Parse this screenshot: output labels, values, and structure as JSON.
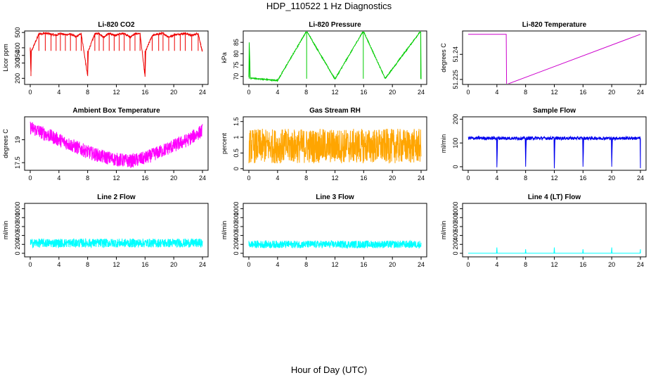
{
  "title": "HDP_110522  1 Hz Diagnostics",
  "xlabel": "Hour of Day (UTC)",
  "chart_data": [
    {
      "type": "line",
      "title": "Li-820 CO2",
      "ylabel": "Licor ppm",
      "color": "#ee0000",
      "xlim": [
        0,
        24
      ],
      "ylim": [
        160,
        510
      ],
      "xticks": [
        0,
        4,
        8,
        12,
        16,
        20,
        24
      ],
      "yticks": [
        200,
        300,
        350,
        400,
        500
      ],
      "baseline": 380,
      "noise": 6,
      "series": [
        {
          "name": "CO2",
          "x": [
            0,
            0.1,
            0.15,
            0.2,
            1.2,
            2.1,
            2.9,
            3.6,
            4.2,
            4.9,
            5.6,
            6.4,
            7.1,
            8.0,
            8.1,
            9.0,
            9.6,
            10.2,
            11.0,
            11.7,
            12.4,
            13.1,
            13.9,
            14.6,
            15.3,
            16.0,
            16.1,
            17.0,
            17.9,
            18.5,
            19.3,
            20.1,
            20.9,
            21.6,
            22.5,
            23.4,
            24
          ],
          "y": [
            400,
            215,
            380,
            380,
            490,
            495,
            490,
            480,
            495,
            485,
            490,
            470,
            495,
            215,
            380,
            490,
            495,
            470,
            495,
            480,
            490,
            495,
            470,
            490,
            495,
            210,
            380,
            480,
            490,
            495,
            470,
            485,
            490,
            495,
            480,
            495,
            370
          ]
        }
      ]
    },
    {
      "type": "line",
      "title": "Li-820 Pressure",
      "ylabel": "kPa",
      "color": "#00cc00",
      "xlim": [
        0,
        24
      ],
      "ylim": [
        66.5,
        90
      ],
      "xticks": [
        0,
        4,
        8,
        12,
        16,
        20,
        24
      ],
      "yticks": [
        70,
        75,
        80,
        85
      ],
      "baseline": 69.0,
      "noise": 0.25,
      "series": [
        {
          "name": "Pressure",
          "x": [
            0,
            0.05,
            0.2,
            4.0,
            8.05,
            12.0,
            15.95,
            19.0,
            23.95,
            24
          ],
          "y": [
            69.5,
            85,
            69.3,
            68.2,
            90,
            68.8,
            90,
            69.1,
            90,
            68.9
          ]
        }
      ]
    },
    {
      "type": "line",
      "title": "Li-820 Temperature",
      "ylabel": "degrees C",
      "color": "#cc00cc",
      "xlim": [
        0,
        24
      ],
      "ylim": [
        51.222,
        51.254
      ],
      "xticks": [
        0,
        4,
        8,
        12,
        16,
        20,
        24
      ],
      "yticks": [
        51.225,
        51.24
      ],
      "baseline": 51.252,
      "noise": 0,
      "series": [
        {
          "name": "Temperature",
          "x": [
            0,
            5.3,
            5.35,
            24
          ],
          "y": [
            51.252,
            51.252,
            51.222,
            51.252
          ]
        }
      ]
    },
    {
      "type": "line",
      "title": "Ambient Box Temperature",
      "ylabel": "degrees C",
      "color": "#ff00ff",
      "xlim": [
        0,
        24
      ],
      "ylim": [
        17.0,
        20.5
      ],
      "xticks": [
        0,
        4,
        8,
        12,
        16,
        20,
        24
      ],
      "yticks": [
        17.5,
        19.0
      ],
      "baseline": 0,
      "noise": 0.45,
      "series": [
        {
          "name": "Box Temp",
          "x": [
            0,
            2,
            4,
            6,
            8,
            10,
            12,
            14,
            16,
            18,
            20,
            22,
            24
          ],
          "y": [
            19.8,
            19.4,
            19.0,
            18.6,
            18.2,
            17.9,
            17.7,
            17.6,
            17.8,
            18.2,
            18.6,
            19.0,
            19.6
          ]
        }
      ]
    },
    {
      "type": "line",
      "title": "Gas Stream RH",
      "ylabel": "percent",
      "color": "#ffa500",
      "xlim": [
        0,
        24
      ],
      "ylim": [
        -0.05,
        1.65
      ],
      "xticks": [
        0,
        4,
        8,
        12,
        16,
        20,
        24
      ],
      "yticks": [
        0.0,
        0.5,
        1.0,
        1.5
      ],
      "baseline": 0.72,
      "noise": 0.55,
      "series": [
        {
          "name": "RH",
          "x": [
            0,
            24
          ],
          "y": [
            0.72,
            0.72
          ]
        }
      ]
    },
    {
      "type": "line",
      "title": "Sample Flow",
      "ylabel": "ml/min",
      "color": "#0000ee",
      "xlim": [
        0,
        24
      ],
      "ylim": [
        -15,
        210
      ],
      "xticks": [
        0,
        4,
        8,
        12,
        16,
        20,
        24
      ],
      "yticks": [
        0,
        100,
        200
      ],
      "baseline": 120,
      "noise": 7,
      "series": [
        {
          "name": "Sample Flow",
          "x": [
            0,
            3.95,
            4.0,
            4.1,
            7.95,
            8.0,
            8.1,
            11.95,
            12.0,
            12.1,
            15.95,
            16.0,
            16.1,
            19.95,
            20.0,
            20.1,
            23.95,
            24.0
          ],
          "y": [
            120,
            120,
            0,
            120,
            120,
            0,
            120,
            120,
            0,
            120,
            120,
            0,
            120,
            120,
            0,
            120,
            120,
            0
          ]
        }
      ]
    },
    {
      "type": "line",
      "title": "Line 2 Flow",
      "ylabel": "ml/min",
      "color": "#00ffff",
      "xlim": [
        0,
        24
      ],
      "ylim": [
        -80,
        1120
      ],
      "xticks": [
        0,
        4,
        8,
        12,
        16,
        20,
        24
      ],
      "yticks": [
        0,
        200,
        400,
        600,
        800,
        1000
      ],
      "baseline": 230,
      "noise": 100,
      "series": [
        {
          "name": "Line 2",
          "x": [
            0,
            24
          ],
          "y": [
            230,
            230
          ]
        }
      ]
    },
    {
      "type": "line",
      "title": "Line 3 Flow",
      "ylabel": "ml/min",
      "color": "#00ffff",
      "xlim": [
        0,
        24
      ],
      "ylim": [
        -80,
        1120
      ],
      "xticks": [
        0,
        4,
        8,
        12,
        16,
        20,
        24
      ],
      "yticks": [
        0,
        200,
        400,
        600,
        800,
        1000
      ],
      "baseline": 200,
      "noise": 85,
      "series": [
        {
          "name": "Line 3",
          "x": [
            0,
            24
          ],
          "y": [
            200,
            200
          ]
        }
      ]
    },
    {
      "type": "line",
      "title": "Line 4 (LT) Flow",
      "ylabel": "ml/min",
      "color": "#00ffff",
      "xlim": [
        0,
        24
      ],
      "ylim": [
        -80,
        1120
      ],
      "xticks": [
        0,
        4,
        8,
        12,
        16,
        20,
        24
      ],
      "yticks": [
        0,
        200,
        400,
        600,
        800,
        1000
      ],
      "baseline": 0,
      "noise": 0,
      "series": [
        {
          "name": "Line 4",
          "x": [
            0,
            3.95,
            4.0,
            4.05,
            7.95,
            8.0,
            8.05,
            11.95,
            12.0,
            12.05,
            15.95,
            16.0,
            16.05,
            19.95,
            20.0,
            20.05,
            23.95,
            24.0,
            24
          ],
          "y": [
            0,
            0,
            130,
            0,
            0,
            90,
            0,
            0,
            130,
            0,
            0,
            90,
            0,
            0,
            130,
            0,
            0,
            90,
            0
          ]
        }
      ]
    }
  ]
}
